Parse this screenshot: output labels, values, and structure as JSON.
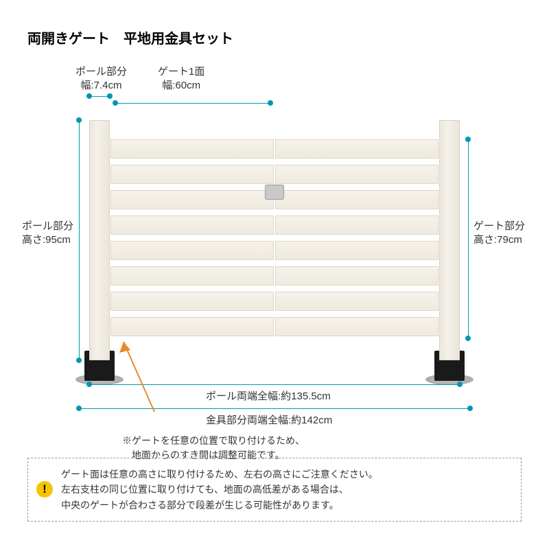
{
  "title": "両開きゲート　平地用金具セット",
  "labels": {
    "pole_width": "ポール部分\n幅:7.4cm",
    "panel_width": "ゲート1面\n幅:60cm",
    "pole_height": "ポール部分\n高さ:95cm",
    "gate_height": "ゲート部分\n高さ:79cm",
    "pole_full_width": "ポール両端全幅:約135.5cm",
    "bracket_full_width": "金具部分両端全幅:約142cm"
  },
  "note_gap": "※ゲートを任意の位置で取り付けるため、\n　地面からのすき間は調整可能です。",
  "warning": "ゲート面は任意の高さに取り付けるため、左右の高さにご注意ください。\n左右支柱の同じ位置に取り付けても、地面の高低差がある場合は、\n中央のゲートが合わさる部分で段差が生じる可能性があります。",
  "colors": {
    "dim": "#0097b2",
    "dot": "#0097b2",
    "callout": "#e88a2a",
    "text": "#333333",
    "wood_light": "#f5f1e9",
    "wood_border": "#d8d2c6",
    "bracket": "#1a1a1a",
    "warn_bg": "#f5c400"
  },
  "diagram": {
    "slat_count": 8,
    "slat_gap": 9,
    "slat_height": 28
  },
  "title_fontsize": 20
}
